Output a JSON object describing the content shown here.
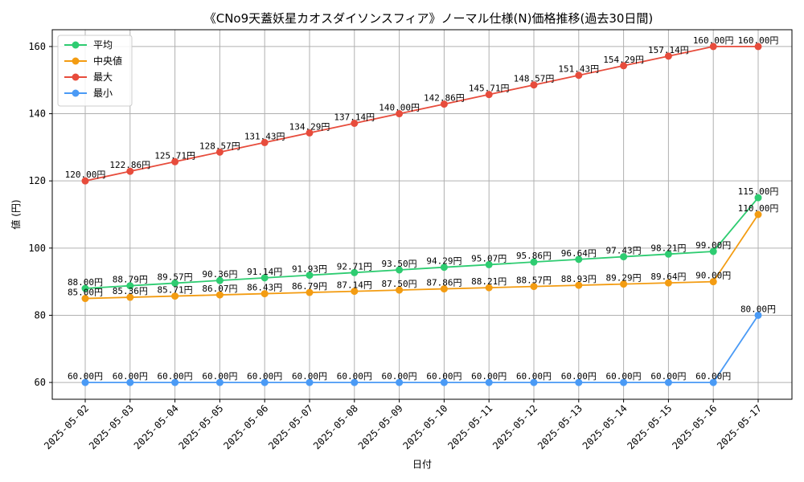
{
  "chart_data": {
    "type": "line",
    "title": "《CNo9天蓋妖星カオスダイソンスフィア》ノーマル仕様(N)価格推移(過去30日間)",
    "xlabel": "日付",
    "ylabel": "値 (円)",
    "x": [
      "2025-05-02",
      "2025-05-03",
      "2025-05-04",
      "2025-05-05",
      "2025-05-06",
      "2025-05-07",
      "2025-05-08",
      "2025-05-09",
      "2025-05-10",
      "2025-05-11",
      "2025-05-12",
      "2025-05-13",
      "2025-05-14",
      "2025-05-15",
      "2025-05-16",
      "2025-05-17"
    ],
    "ylim": [
      55,
      165
    ],
    "yticks": [
      60,
      80,
      100,
      120,
      140,
      160
    ],
    "grid": true,
    "legend_position": "top-left",
    "label_suffix": "円",
    "series": [
      {
        "name": "平均",
        "color": "#2ecc71",
        "values": [
          88.0,
          88.79,
          89.57,
          90.36,
          91.14,
          91.93,
          92.71,
          93.5,
          94.29,
          95.07,
          95.86,
          96.64,
          97.43,
          98.21,
          99.0,
          115.0
        ]
      },
      {
        "name": "中央値",
        "color": "#f39c12",
        "values": [
          85.0,
          85.36,
          85.71,
          86.07,
          86.43,
          86.79,
          87.14,
          87.5,
          87.86,
          88.21,
          88.57,
          88.93,
          89.29,
          89.64,
          90.0,
          110.0
        ]
      },
      {
        "name": "最大",
        "color": "#e74c3c",
        "values": [
          120.0,
          122.86,
          125.71,
          128.57,
          131.43,
          134.29,
          137.14,
          140.0,
          142.86,
          145.71,
          148.57,
          151.43,
          154.29,
          157.14,
          160.0,
          160.0
        ]
      },
      {
        "name": "最小",
        "color": "#4a9af5",
        "values": [
          60.0,
          60.0,
          60.0,
          60.0,
          60.0,
          60.0,
          60.0,
          60.0,
          60.0,
          60.0,
          60.0,
          60.0,
          60.0,
          60.0,
          60.0,
          80.0
        ]
      }
    ]
  }
}
